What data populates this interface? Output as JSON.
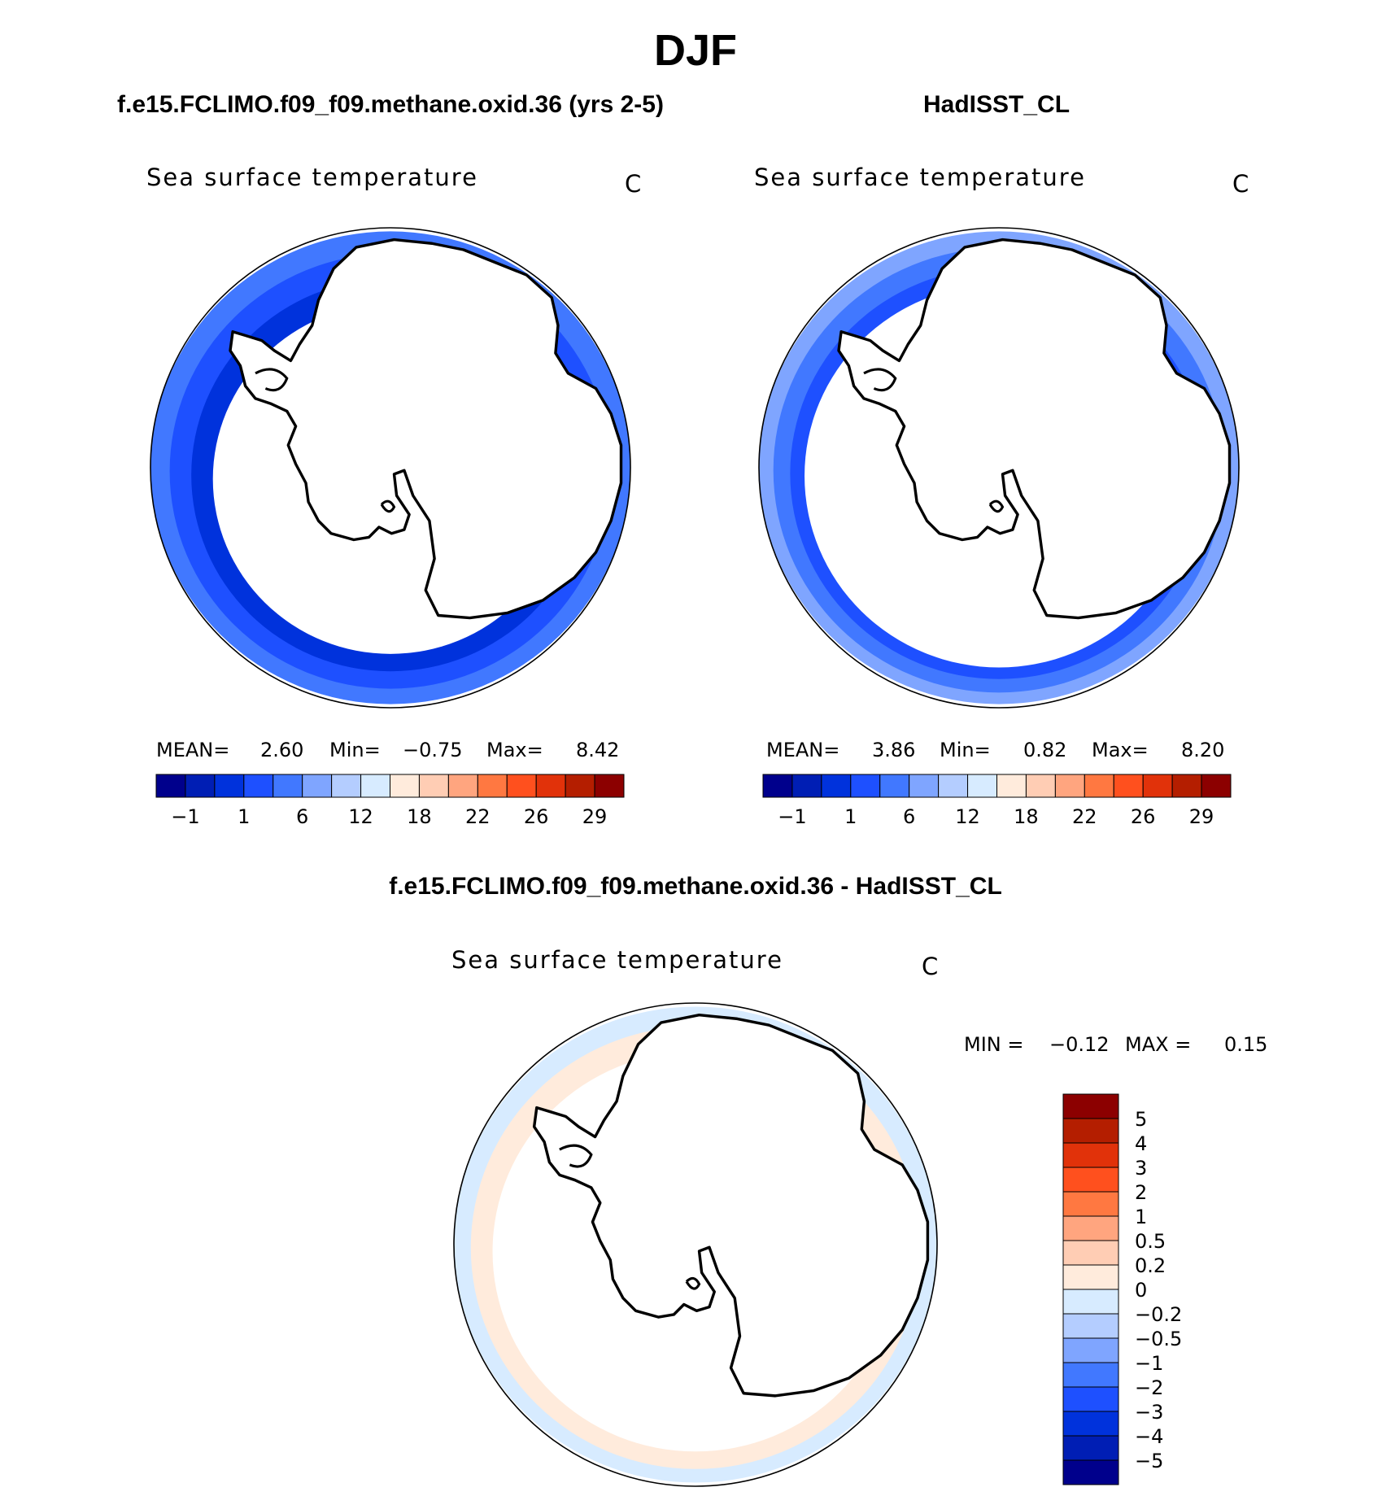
{
  "title": "DJF",
  "colors": {
    "ocean_main": "#2D5FFF",
    "land": "#ffffff",
    "coast": "#000000"
  },
  "chart_data": [
    {
      "type": "heatmap",
      "case_title": "f.e15.FCLIMO.f09_f09.methane.oxid.36 (yrs 2-5)",
      "title": "Sea surface temperature",
      "units": "C",
      "stats": {
        "mean_label": "MEAN=",
        "mean": "2.60",
        "min_label": "Min=",
        "min": "−0.75",
        "max_label": "Max=",
        "max": "8.42"
      },
      "colorbar_colors": [
        "#00008C",
        "#001EB4",
        "#0032DC",
        "#1E50FF",
        "#4178FF",
        "#7FA5FF",
        "#B4CDFF",
        "#D7EBFF",
        "#FFEBDC",
        "#FFCDB4",
        "#FFA57F",
        "#FF7841",
        "#FF501E",
        "#E1320A",
        "#B41E00",
        "#8C0000"
      ],
      "colorbar_labels": [
        "−1",
        "1",
        "6",
        "12",
        "18",
        "22",
        "26",
        "29"
      ],
      "bands": [
        {
          "r": 1.0,
          "color": "#4178FF"
        },
        {
          "r": 0.92,
          "color": "#1E50FF"
        },
        {
          "r": 0.83,
          "color": "#0032DC"
        },
        {
          "r": 0.74,
          "color": "#ffffff"
        }
      ]
    },
    {
      "type": "heatmap",
      "case_title": "HadISST_CL",
      "title": "Sea surface temperature",
      "units": "C",
      "stats": {
        "mean_label": "MEAN=",
        "mean": "3.86",
        "min_label": "Min=",
        "min": "0.82",
        "max_label": "Max=",
        "max": "8.20"
      },
      "colorbar_colors": [
        "#00008C",
        "#001EB4",
        "#0032DC",
        "#1E50FF",
        "#4178FF",
        "#7FA5FF",
        "#B4CDFF",
        "#D7EBFF",
        "#FFEBDC",
        "#FFCDB4",
        "#FFA57F",
        "#FF7841",
        "#FF501E",
        "#E1320A",
        "#B41E00",
        "#8C0000"
      ],
      "colorbar_labels": [
        "−1",
        "1",
        "6",
        "12",
        "18",
        "22",
        "26",
        "29"
      ],
      "bands": [
        {
          "r": 1.0,
          "color": "#7FA5FF"
        },
        {
          "r": 0.94,
          "color": "#4178FF"
        },
        {
          "r": 0.87,
          "color": "#1E50FF"
        },
        {
          "r": 0.81,
          "color": "#ffffff"
        }
      ]
    },
    {
      "type": "heatmap",
      "case_title": "f.e15.FCLIMO.f09_f09.methane.oxid.36 - HadISST_CL",
      "title": "Sea surface temperature",
      "units": "C",
      "stats": {
        "min_label": "MIN =",
        "min": "−0.12",
        "max_label": "MAX =",
        "max": "0.15"
      },
      "colorbar_colors": [
        "#8C0000",
        "#B41E00",
        "#E1320A",
        "#FF501E",
        "#FF7841",
        "#FFA57F",
        "#FFCDB4",
        "#FFEBDC",
        "#D7EBFF",
        "#B4CDFF",
        "#7FA5FF",
        "#4178FF",
        "#1E50FF",
        "#0032DC",
        "#001EB4",
        "#00008C"
      ],
      "colorbar_labels": [
        "5",
        "4",
        "3",
        "2",
        "1",
        "0.5",
        "0.2",
        "0",
        "−0.2",
        "−0.5",
        "−1",
        "−2",
        "−3",
        "−4",
        "−5"
      ],
      "bands": [
        {
          "r": 1.0,
          "color": "#D7EBFF"
        },
        {
          "r": 0.93,
          "color": "#FFEBDC"
        },
        {
          "r": 0.84,
          "color": "#ffffff"
        }
      ]
    }
  ]
}
